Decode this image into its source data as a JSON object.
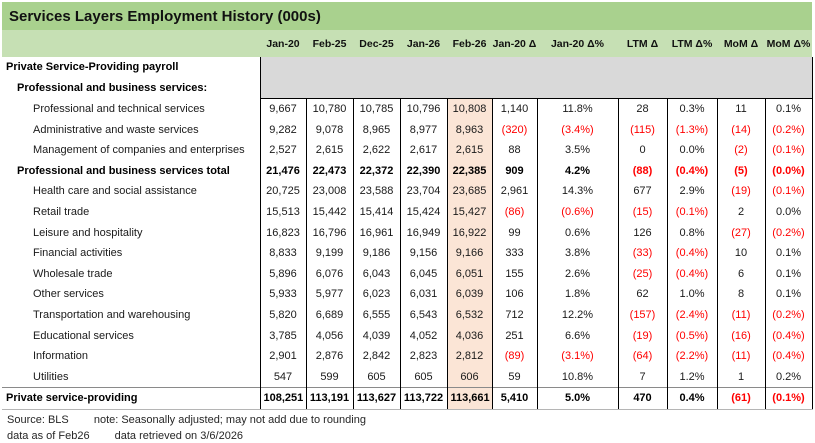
{
  "title": "Services Layers Employment History (000s)",
  "colors": {
    "title_bg": "#a9d18e",
    "header_bg": "#c6e0b4",
    "gray_block": "#d9d9d9",
    "highlight_column_bg": "#fbe5d6",
    "negative_text": "#ff0000"
  },
  "table": {
    "columns": [
      "Jan-20",
      "Feb-25",
      "Dec-25",
      "Jan-26",
      "Feb-26",
      "Jan-20 Δ",
      "Jan-20 Δ%",
      "LTM Δ",
      "LTM Δ%",
      "MoM Δ",
      "MoM Δ%"
    ],
    "highlight_column": "Feb-26",
    "rows": [
      {
        "label": "Private Service-Providing payroll",
        "indent": 0,
        "bold": true,
        "section": true
      },
      {
        "label": "Professional and business services:",
        "indent": 1,
        "bold": true,
        "section": true
      },
      {
        "label": "Professional and technical services",
        "indent": 2,
        "bold": false,
        "values": [
          "9,667",
          "10,780",
          "10,785",
          "10,796",
          "10,808",
          "1,140",
          "11.8%",
          "28",
          "0.3%",
          "11",
          "0.1%"
        ]
      },
      {
        "label": "Administrative and waste services",
        "indent": 2,
        "bold": false,
        "values": [
          "9,282",
          "9,078",
          "8,965",
          "8,977",
          "8,963",
          "(320)",
          "(3.4%)",
          "(115)",
          "(1.3%)",
          "(14)",
          "(0.2%)"
        ]
      },
      {
        "label": "Management of companies and enterprises",
        "indent": 2,
        "bold": false,
        "values": [
          "2,527",
          "2,615",
          "2,622",
          "2,617",
          "2,615",
          "88",
          "3.5%",
          "0",
          "0.0%",
          "(2)",
          "(0.1%)"
        ]
      },
      {
        "label": "Professional and business services total",
        "indent": 1,
        "bold": true,
        "values": [
          "21,476",
          "22,473",
          "22,372",
          "22,390",
          "22,385",
          "909",
          "4.2%",
          "(88)",
          "(0.4%)",
          "(5)",
          "(0.0%)"
        ]
      },
      {
        "label": "Health care and social assistance",
        "indent": 2,
        "bold": false,
        "values": [
          "20,725",
          "23,008",
          "23,588",
          "23,704",
          "23,685",
          "2,961",
          "14.3%",
          "677",
          "2.9%",
          "(19)",
          "(0.1%)"
        ]
      },
      {
        "label": "Retail trade",
        "indent": 2,
        "bold": false,
        "values": [
          "15,513",
          "15,442",
          "15,414",
          "15,424",
          "15,427",
          "(86)",
          "(0.6%)",
          "(15)",
          "(0.1%)",
          "2",
          "0.0%"
        ]
      },
      {
        "label": "Leisure and hospitality",
        "indent": 2,
        "bold": false,
        "values": [
          "16,823",
          "16,796",
          "16,961",
          "16,949",
          "16,922",
          "99",
          "0.6%",
          "126",
          "0.8%",
          "(27)",
          "(0.2%)"
        ]
      },
      {
        "label": "Financial activities",
        "indent": 2,
        "bold": false,
        "values": [
          "8,833",
          "9,199",
          "9,186",
          "9,156",
          "9,166",
          "333",
          "3.8%",
          "(33)",
          "(0.4%)",
          "10",
          "0.1%"
        ]
      },
      {
        "label": "Wholesale trade",
        "indent": 2,
        "bold": false,
        "values": [
          "5,896",
          "6,076",
          "6,043",
          "6,045",
          "6,051",
          "155",
          "2.6%",
          "(25)",
          "(0.4%)",
          "6",
          "0.1%"
        ]
      },
      {
        "label": "Other services",
        "indent": 2,
        "bold": false,
        "values": [
          "5,933",
          "5,977",
          "6,023",
          "6,031",
          "6,039",
          "106",
          "1.8%",
          "62",
          "1.0%",
          "8",
          "0.1%"
        ]
      },
      {
        "label": "Transportation and warehousing",
        "indent": 2,
        "bold": false,
        "values": [
          "5,820",
          "6,689",
          "6,555",
          "6,543",
          "6,532",
          "712",
          "12.2%",
          "(157)",
          "(2.4%)",
          "(11)",
          "(0.2%)"
        ]
      },
      {
        "label": "Educational services",
        "indent": 2,
        "bold": false,
        "values": [
          "3,785",
          "4,056",
          "4,039",
          "4,052",
          "4,036",
          "251",
          "6.6%",
          "(19)",
          "(0.5%)",
          "(16)",
          "(0.4%)"
        ]
      },
      {
        "label": "Information",
        "indent": 2,
        "bold": false,
        "values": [
          "2,901",
          "2,876",
          "2,842",
          "2,823",
          "2,812",
          "(89)",
          "(3.1%)",
          "(64)",
          "(2.2%)",
          "(11)",
          "(0.4%)"
        ]
      },
      {
        "label": "Utilities",
        "indent": 2,
        "bold": false,
        "values": [
          "547",
          "599",
          "605",
          "605",
          "606",
          "59",
          "10.8%",
          "7",
          "1.2%",
          "1",
          "0.2%"
        ]
      },
      {
        "label": "Private service-providing",
        "indent": 0,
        "bold": true,
        "rule_above": true,
        "values": [
          "108,251",
          "113,191",
          "113,627",
          "113,722",
          "113,661",
          "5,410",
          "5.0%",
          "470",
          "0.4%",
          "(61)",
          "(0.1%)"
        ]
      }
    ]
  },
  "footer": {
    "source": "Source: BLS",
    "note": "note: Seasonally adjusted; may not add due to rounding",
    "as_of": "data as of Feb26",
    "retrieved": "data retrieved on 3/6/2026"
  }
}
